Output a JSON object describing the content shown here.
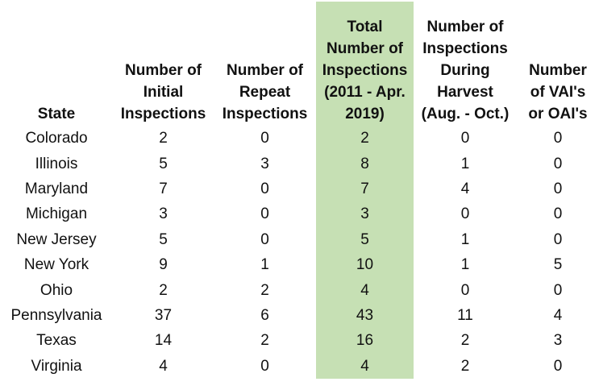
{
  "table": {
    "headers": [
      [
        "State"
      ],
      [
        "Number of",
        "Initial",
        "Inspections"
      ],
      [
        "Number of",
        "Repeat",
        "Inspections"
      ],
      [
        "Total",
        "Number of",
        "Inspections",
        "(2011 - Apr.",
        "2019)"
      ],
      [
        "Number of",
        "Inspections",
        "During",
        "Harvest",
        "(Aug. - Oct.)"
      ],
      [
        "Number",
        "of VAI's",
        "or OAI's"
      ]
    ],
    "rows": [
      [
        "Colorado",
        "2",
        "0",
        "2",
        "0",
        "0"
      ],
      [
        "Illinois",
        "5",
        "3",
        "8",
        "1",
        "0"
      ],
      [
        "Maryland",
        "7",
        "0",
        "7",
        "4",
        "0"
      ],
      [
        "Michigan",
        "3",
        "0",
        "3",
        "0",
        "0"
      ],
      [
        "New Jersey",
        "5",
        "0",
        "5",
        "1",
        "0"
      ],
      [
        "New York",
        "9",
        "1",
        "10",
        "1",
        "5"
      ],
      [
        "Ohio",
        "2",
        "2",
        "4",
        "0",
        "0"
      ],
      [
        "Pennsylvania",
        "37",
        "6",
        "43",
        "11",
        "4"
      ],
      [
        "Texas",
        "14",
        "2",
        "16",
        "2",
        "3"
      ],
      [
        "Virginia",
        "4",
        "0",
        "4",
        "2",
        "0"
      ]
    ]
  },
  "colors": {
    "highlight_column": "#c6e0b4",
    "text": "#111111",
    "background": "#ffffff"
  }
}
